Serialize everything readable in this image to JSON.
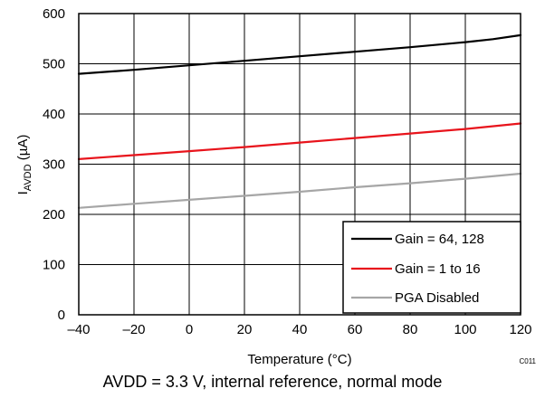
{
  "chart_data": {
    "type": "line",
    "xlabel": "Temperature (°C)",
    "ylabel_main": "I",
    "ylabel_sub": "AVDD",
    "ylabel_rest": " (µA)",
    "xlim": [
      -40,
      120
    ],
    "ylim": [
      0,
      600
    ],
    "x_ticks": [
      -40,
      -20,
      0,
      20,
      40,
      60,
      80,
      100,
      120
    ],
    "x_tick_labels": [
      "–40",
      "–20",
      "0",
      "20",
      "40",
      "60",
      "80",
      "100",
      "120"
    ],
    "y_ticks": [
      0,
      100,
      200,
      300,
      400,
      500,
      600
    ],
    "y_tick_labels": [
      "0",
      "100",
      "200",
      "300",
      "400",
      "500",
      "600"
    ],
    "grid": true,
    "legend_position": "bottom-right",
    "series": [
      {
        "name": "Gain = 64, 128",
        "color": "#000000",
        "x": [
          -40,
          -20,
          0,
          20,
          40,
          60,
          80,
          100,
          110,
          120
        ],
        "y": [
          480,
          488,
          497,
          506,
          515,
          524,
          533,
          543,
          549,
          557
        ]
      },
      {
        "name": "Gain = 1 to 16",
        "color": "#e8141c",
        "x": [
          -40,
          -20,
          0,
          20,
          40,
          60,
          80,
          100,
          120
        ],
        "y": [
          310,
          318,
          326,
          334,
          343,
          352,
          361,
          370,
          381
        ]
      },
      {
        "name": "PGA Disabled",
        "color": "#a6a6a6",
        "x": [
          -40,
          -20,
          0,
          20,
          40,
          60,
          80,
          100,
          120
        ],
        "y": [
          213,
          221,
          229,
          237,
          245,
          254,
          262,
          271,
          281
        ]
      }
    ],
    "code_label": "C011"
  },
  "caption": "AVDD = 3.3 V, internal reference, normal mode"
}
